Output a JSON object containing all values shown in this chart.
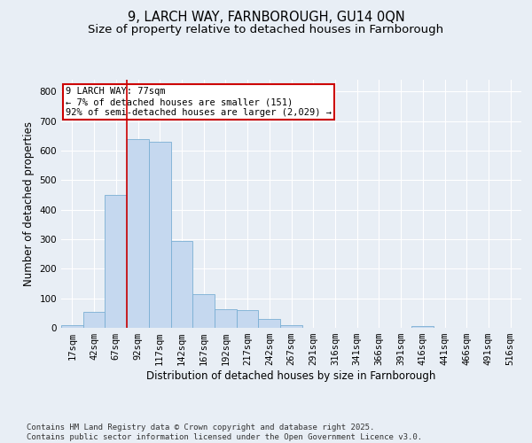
{
  "title_line1": "9, LARCH WAY, FARNBOROUGH, GU14 0QN",
  "title_line2": "Size of property relative to detached houses in Farnborough",
  "xlabel": "Distribution of detached houses by size in Farnborough",
  "ylabel": "Number of detached properties",
  "bar_labels": [
    "17sqm",
    "42sqm",
    "67sqm",
    "92sqm",
    "117sqm",
    "142sqm",
    "167sqm",
    "192sqm",
    "217sqm",
    "242sqm",
    "267sqm",
    "291sqm",
    "316sqm",
    "341sqm",
    "366sqm",
    "391sqm",
    "416sqm",
    "441sqm",
    "466sqm",
    "491sqm",
    "516sqm"
  ],
  "bar_values": [
    8,
    55,
    450,
    640,
    630,
    295,
    115,
    62,
    60,
    30,
    8,
    0,
    0,
    0,
    0,
    0,
    5,
    0,
    0,
    0,
    0
  ],
  "bar_color": "#c5d8ef",
  "bar_edgecolor": "#7aafd4",
  "vline_color": "#cc0000",
  "annotation_text": "9 LARCH WAY: 77sqm\n← 7% of detached houses are smaller (151)\n92% of semi-detached houses are larger (2,029) →",
  "annotation_box_facecolor": "#ffffff",
  "annotation_box_edgecolor": "#cc0000",
  "ylim": [
    0,
    840
  ],
  "yticks": [
    0,
    100,
    200,
    300,
    400,
    500,
    600,
    700,
    800
  ],
  "background_color": "#e8eef5",
  "grid_color": "#ffffff",
  "footer_text": "Contains HM Land Registry data © Crown copyright and database right 2025.\nContains public sector information licensed under the Open Government Licence v3.0.",
  "title_fontsize": 10.5,
  "subtitle_fontsize": 9.5,
  "axis_label_fontsize": 8.5,
  "tick_fontsize": 7.5,
  "annotation_fontsize": 7.5,
  "footer_fontsize": 6.5
}
